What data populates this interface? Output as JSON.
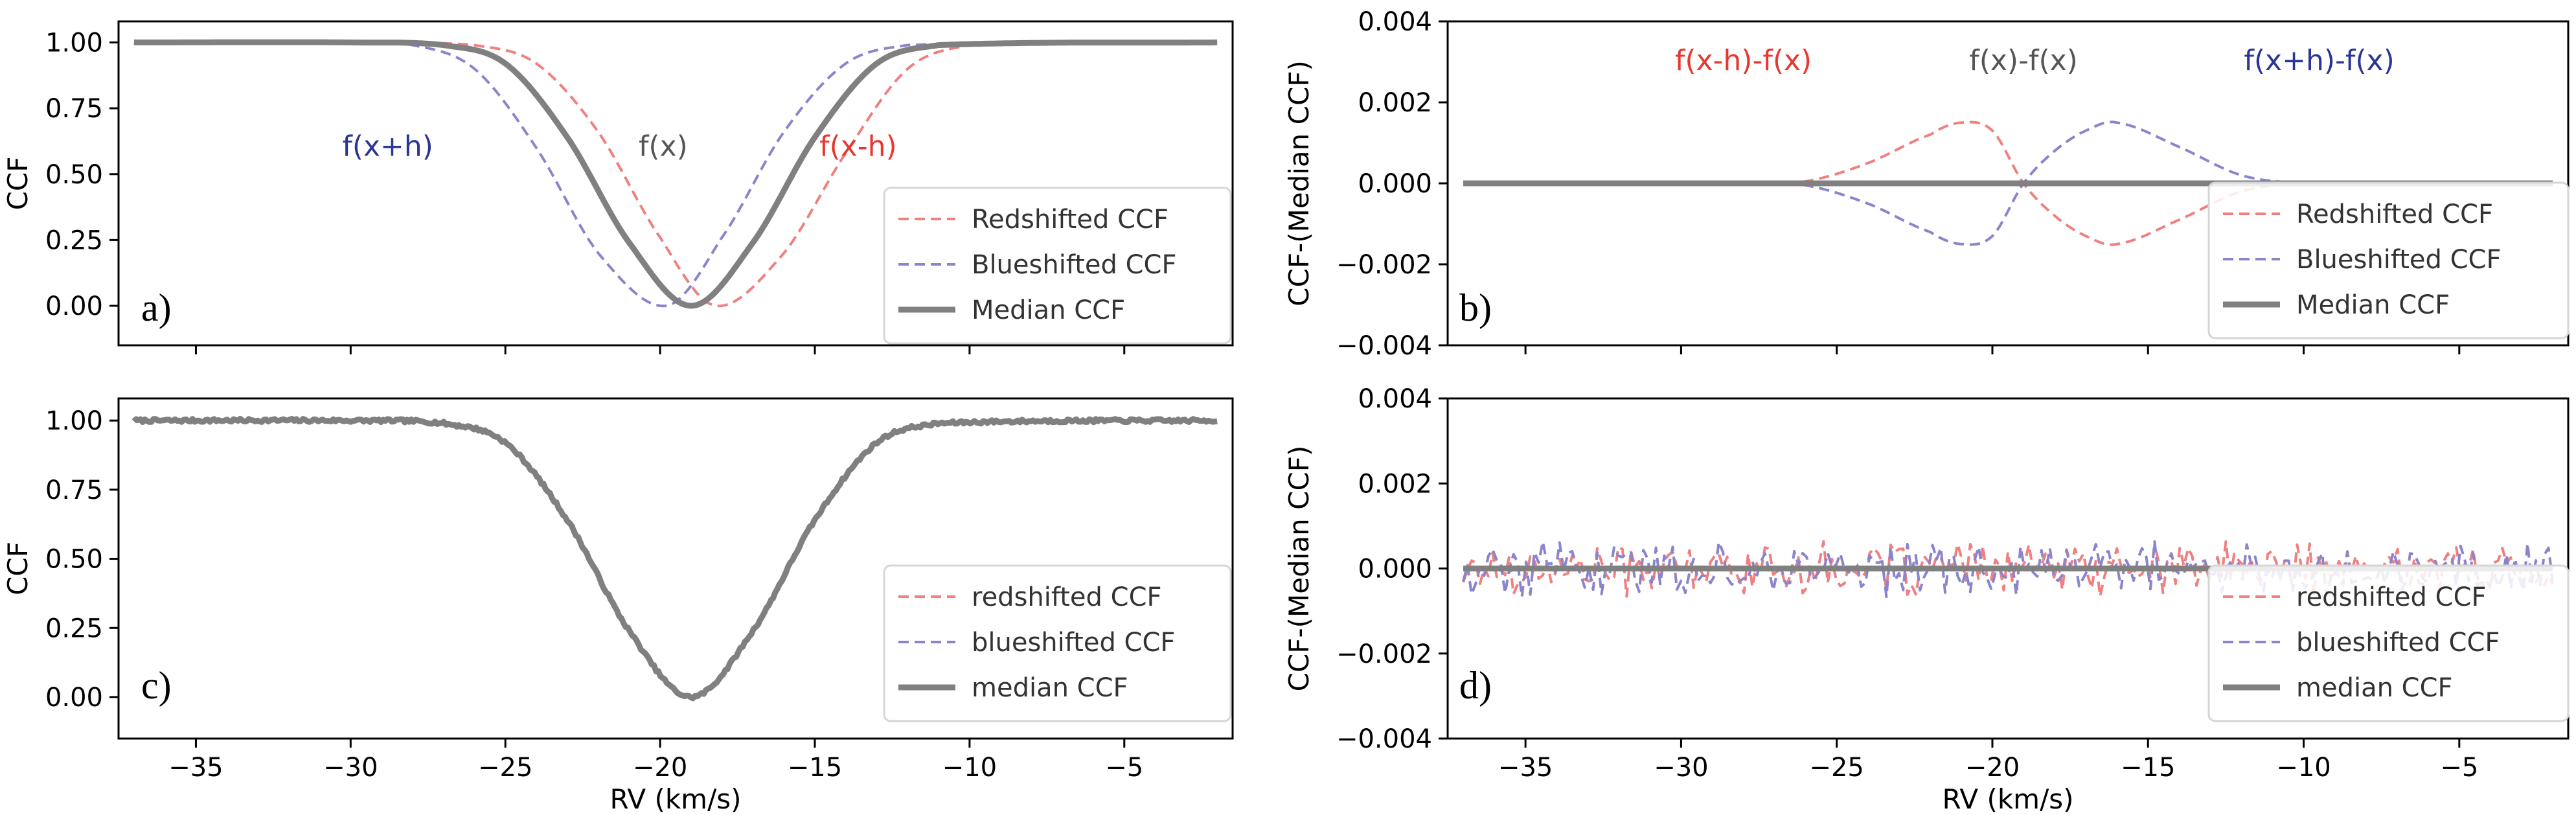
{
  "figure": {
    "xlabel": "RV (km/s)",
    "colors": {
      "red": "#f08080",
      "blue": "#8a84cc",
      "gray": "#808080",
      "annot_red": "#e8372f",
      "annot_blue": "#2a3596",
      "annot_gray": "#555555"
    }
  },
  "chart_data": [
    {
      "type": "line",
      "panel": "a)",
      "ylabel": "CCF",
      "xlim": [
        -37.5,
        -1.5
      ],
      "ylim": [
        -0.15,
        1.08
      ],
      "xticks": [
        -35,
        -30,
        -25,
        -20,
        -15,
        -10,
        -5
      ],
      "yticks": [
        "0.00",
        "0.25",
        "0.50",
        "0.75",
        "1.00"
      ],
      "legend_position": "lower-right",
      "legend": [
        "Redshifted CCF",
        "Blueshifted CCF",
        "Median CCF"
      ],
      "annotations": [
        {
          "text": "f(x+h)",
          "x": -28.8,
          "y": 0.57,
          "color": "blue"
        },
        {
          "text": "f(x)",
          "x": -19.9,
          "y": 0.57,
          "color": "gray"
        },
        {
          "text": "f(x-h)",
          "x": -13.6,
          "y": 0.57,
          "color": "red"
        }
      ],
      "series": [
        {
          "name": "Redshifted CCF",
          "style": "dashed",
          "color": "red",
          "model": "gaussian_dip",
          "x": [
            -37,
            -30,
            -26,
            -24,
            -22,
            -20,
            -18.2,
            -16,
            -14,
            -12,
            -10,
            -2
          ],
          "values": [
            1.0,
            1.0,
            0.99,
            0.92,
            0.66,
            0.26,
            0.0,
            0.2,
            0.58,
            0.9,
            0.99,
            1.0
          ]
        },
        {
          "name": "Blueshifted CCF",
          "style": "dashed",
          "color": "blue",
          "model": "gaussian_dip",
          "x": [
            -37,
            -30,
            -28,
            -26,
            -24,
            -22,
            -19.8,
            -18,
            -16,
            -14,
            -12,
            -2
          ],
          "values": [
            1.0,
            1.0,
            0.99,
            0.9,
            0.6,
            0.2,
            0.0,
            0.26,
            0.66,
            0.92,
            0.99,
            1.0
          ]
        },
        {
          "name": "Median CCF",
          "style": "solid",
          "color": "gray",
          "model": "gaussian_dip",
          "x": [
            -37,
            -30,
            -27,
            -25,
            -23,
            -21,
            -19,
            -17,
            -15,
            -13,
            -11,
            -2
          ],
          "values": [
            1.0,
            1.0,
            0.99,
            0.92,
            0.64,
            0.24,
            0.0,
            0.24,
            0.64,
            0.92,
            0.99,
            1.0
          ]
        }
      ]
    },
    {
      "type": "line",
      "panel": "b)",
      "ylabel": "CCF-(Median CCF)",
      "xlim": [
        -37.5,
        -1.5
      ],
      "ylim": [
        -0.004,
        0.004
      ],
      "xticks": [
        -35,
        -30,
        -25,
        -20,
        -15,
        -10,
        -5
      ],
      "yticks": [
        "−0.004",
        "−0.002",
        "0.000",
        "0.002",
        "0.004"
      ],
      "legend_position": "lower-right",
      "legend": [
        "Redshifted CCF",
        "Blueshifted CCF",
        "Median CCF"
      ],
      "annotations": [
        {
          "text": "f(x-h)-f(x)",
          "x": -28,
          "y": 0.0028,
          "color": "red"
        },
        {
          "text": "f(x)-f(x)",
          "x": -19,
          "y": 0.0028,
          "color": "gray"
        },
        {
          "text": "f(x+h)-f(x)",
          "x": -9.5,
          "y": 0.0028,
          "color": "blue"
        }
      ],
      "series": [
        {
          "name": "Redshifted CCF",
          "style": "dashed",
          "color": "red",
          "model": "derivative",
          "x": [
            -37,
            -28,
            -26,
            -24,
            -22,
            -21,
            -20,
            -19,
            -18,
            -17,
            -16,
            -14,
            -12,
            -10,
            -2
          ],
          "values": [
            0.0,
            0.0,
            5e-05,
            0.0005,
            0.0012,
            0.0015,
            0.0013,
            0.0,
            -0.0008,
            -0.0013,
            -0.0015,
            -0.0009,
            -0.0002,
            0.0,
            0.0
          ]
        },
        {
          "name": "Blueshifted CCF",
          "style": "dashed",
          "color": "blue",
          "model": "derivative",
          "x": [
            -37,
            -28,
            -26,
            -24,
            -22,
            -21,
            -20,
            -19,
            -18,
            -17,
            -16,
            -14,
            -12,
            -10,
            -2
          ],
          "values": [
            0.0,
            0.0,
            -5e-05,
            -0.0005,
            -0.0012,
            -0.0015,
            -0.0013,
            0.0,
            0.0008,
            0.0013,
            0.0015,
            0.0009,
            0.0002,
            0.0,
            0.0
          ]
        },
        {
          "name": "Median CCF",
          "style": "solid",
          "color": "gray",
          "model": "flat",
          "x": [
            -37,
            -2
          ],
          "values": [
            0.0,
            0.0
          ]
        }
      ]
    },
    {
      "type": "line",
      "panel": "c)",
      "ylabel": "CCF",
      "xlabel": "RV (km/s)",
      "xlim": [
        -37.5,
        -1.5
      ],
      "ylim": [
        -0.15,
        1.08
      ],
      "xticks": [
        -35,
        -30,
        -25,
        -20,
        -15,
        -10,
        -5
      ],
      "xticklabels": [
        "−35",
        "−30",
        "−25",
        "−20",
        "−15",
        "−10",
        "−5"
      ],
      "yticks": [
        "0.00",
        "0.25",
        "0.50",
        "0.75",
        "1.00"
      ],
      "legend_position": "lower-right",
      "legend": [
        "redshifted CCF",
        "blueshifted CCF",
        "median CCF"
      ],
      "series": [
        {
          "name": "median CCF",
          "style": "solid",
          "color": "gray",
          "model": "gaussian_dip_noisy",
          "x": [
            -37,
            -30,
            -27,
            -25,
            -23,
            -21,
            -19,
            -17,
            -15,
            -13,
            -11,
            -2
          ],
          "values": [
            1.0,
            1.0,
            0.99,
            0.92,
            0.64,
            0.24,
            0.0,
            0.24,
            0.64,
            0.92,
            0.99,
            1.0
          ]
        }
      ]
    },
    {
      "type": "line",
      "panel": "d)",
      "ylabel": "CCF-(Median CCF)",
      "xlabel": "RV (km/s)",
      "xlim": [
        -37.5,
        -1.5
      ],
      "ylim": [
        -0.004,
        0.004
      ],
      "xticks": [
        -35,
        -30,
        -25,
        -20,
        -15,
        -10,
        -5
      ],
      "xticklabels": [
        "−35",
        "−30",
        "−25",
        "−20",
        "−15",
        "−10",
        "−5"
      ],
      "yticks": [
        "−0.004",
        "−0.002",
        "0.000",
        "0.002",
        "0.004"
      ],
      "legend_position": "lower-right",
      "legend": [
        "redshifted CCF",
        "blueshifted CCF",
        "median CCF"
      ],
      "series": [
        {
          "name": "redshifted CCF",
          "style": "dashed",
          "color": "red",
          "model": "noise",
          "noise_amplitude": 0.0005,
          "x": [
            -37,
            -2
          ],
          "values": [
            0.0,
            0.0
          ]
        },
        {
          "name": "blueshifted CCF",
          "style": "dashed",
          "color": "blue",
          "model": "noise",
          "noise_amplitude": 0.0005,
          "x": [
            -37,
            -2
          ],
          "values": [
            0.0,
            0.0
          ]
        },
        {
          "name": "median CCF",
          "style": "solid",
          "color": "gray",
          "model": "flat",
          "x": [
            -37,
            -2
          ],
          "values": [
            0.0,
            0.0
          ]
        }
      ]
    }
  ]
}
